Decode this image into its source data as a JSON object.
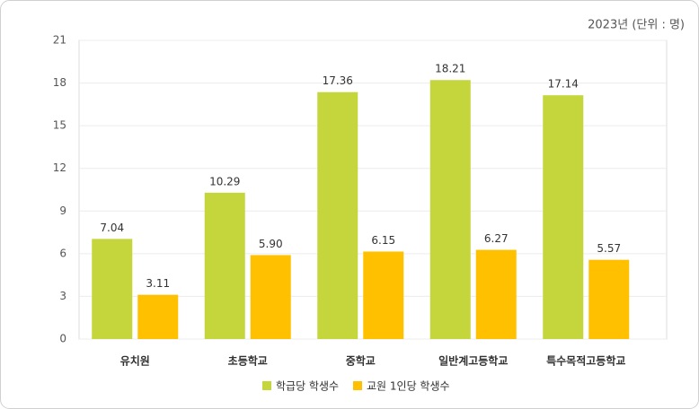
{
  "chart_data": {
    "type": "bar",
    "annotation": "2023년 (단위 : 명)",
    "categories": [
      "유치원",
      "초등학교",
      "중학교",
      "일반계고등학교",
      "특수목적고등학교"
    ],
    "series": [
      {
        "name": "학급당 학생수",
        "color": "#c5d63d",
        "values": [
          7.04,
          10.29,
          17.36,
          18.21,
          17.14
        ],
        "value_labels": [
          "7.04",
          "10.29",
          "17.36",
          "18.21",
          "17.14"
        ]
      },
      {
        "name": "교원 1인당 학생수",
        "color": "#ffc000",
        "values": [
          3.11,
          5.9,
          6.15,
          6.27,
          5.57
        ],
        "value_labels": [
          "3.11",
          "5.90",
          "6.15",
          "6.27",
          "5.57"
        ]
      }
    ],
    "ylim": [
      0,
      21
    ],
    "yticks": [
      0,
      3,
      6,
      9,
      12,
      15,
      18,
      21
    ],
    "grid": true,
    "legend": "bottom"
  }
}
